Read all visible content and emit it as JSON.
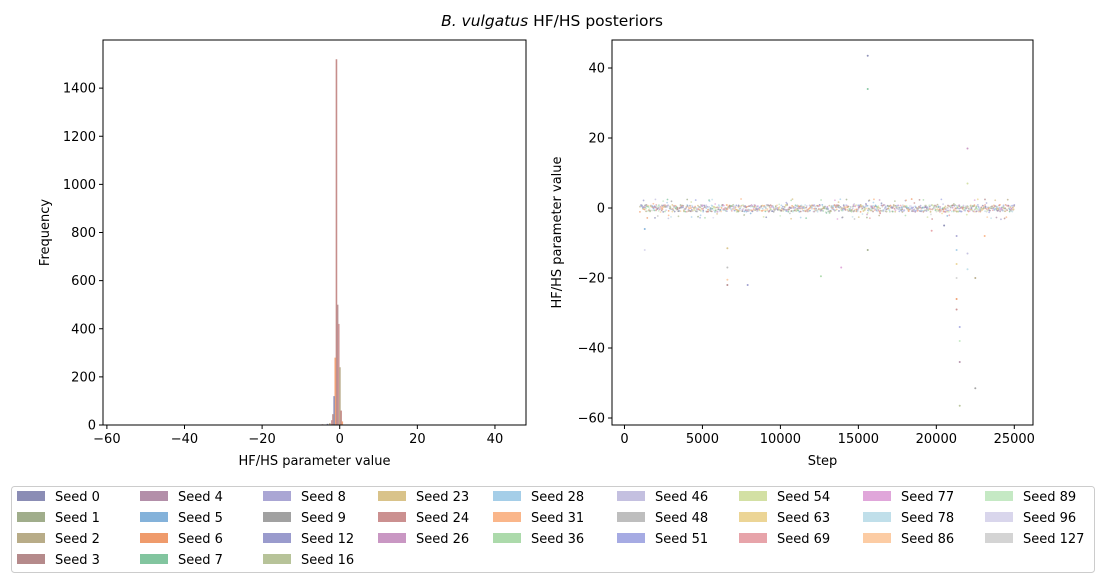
{
  "figure": {
    "title_italic": "B. vulgatus",
    "title_rest": " HF/HS posteriors"
  },
  "chart_data": [
    {
      "type": "histogram",
      "xlabel": "HF/HS parameter value",
      "ylabel": "Frequency",
      "xlim": [
        -61,
        48
      ],
      "ylim": [
        0,
        1600
      ],
      "xticks": [
        -60,
        -40,
        -20,
        0,
        20,
        40
      ],
      "yticks": [
        0,
        200,
        400,
        600,
        800,
        1000,
        1200,
        1400
      ],
      "bins": [
        {
          "x": -0.9,
          "y": 1520
        },
        {
          "x": -0.6,
          "y": 500
        },
        {
          "x": -0.3,
          "y": 420
        },
        {
          "x": -1.2,
          "y": 280
        },
        {
          "x": 0.0,
          "y": 240
        },
        {
          "x": -1.5,
          "y": 120
        },
        {
          "x": 0.3,
          "y": 60
        },
        {
          "x": -1.8,
          "y": 45
        },
        {
          "x": -2.1,
          "y": 20
        },
        {
          "x": 0.6,
          "y": 15
        },
        {
          "x": -2.6,
          "y": 8
        },
        {
          "x": -3.2,
          "y": 5
        },
        {
          "x": -4.5,
          "y": 3
        },
        {
          "x": -6.0,
          "y": 2
        },
        {
          "x": -12.0,
          "y": 2
        },
        {
          "x": -28.0,
          "y": 2
        },
        {
          "x": 1.5,
          "y": 2
        }
      ]
    },
    {
      "type": "scatter",
      "xlabel": "Step",
      "ylabel": "HF/HS parameter value",
      "xlim": [
        -800,
        26200
      ],
      "ylim": [
        -62,
        48
      ],
      "xticks": [
        0,
        5000,
        10000,
        15000,
        20000,
        25000
      ],
      "yticks": [
        -60,
        -40,
        -20,
        0,
        20,
        40
      ],
      "band": {
        "x_start": 1000,
        "x_end": 25000,
        "center": 0,
        "spread": 1
      },
      "outliers": [
        {
          "x": 15600,
          "y": 43.5
        },
        {
          "x": 15600,
          "y": 34
        },
        {
          "x": 22000,
          "y": 17
        },
        {
          "x": 22000,
          "y": 7
        },
        {
          "x": 1300,
          "y": -12
        },
        {
          "x": 1300,
          "y": -6
        },
        {
          "x": 6600,
          "y": -11.5
        },
        {
          "x": 6600,
          "y": -17
        },
        {
          "x": 6600,
          "y": -20.5
        },
        {
          "x": 6600,
          "y": -22
        },
        {
          "x": 7900,
          "y": -22
        },
        {
          "x": 12600,
          "y": -19.5
        },
        {
          "x": 13900,
          "y": -17
        },
        {
          "x": 15600,
          "y": -12
        },
        {
          "x": 21300,
          "y": -8
        },
        {
          "x": 21300,
          "y": -12
        },
        {
          "x": 21300,
          "y": -16
        },
        {
          "x": 21300,
          "y": -20
        },
        {
          "x": 21300,
          "y": -26
        },
        {
          "x": 21300,
          "y": -29
        },
        {
          "x": 21500,
          "y": -34
        },
        {
          "x": 21500,
          "y": -38
        },
        {
          "x": 21500,
          "y": -44
        },
        {
          "x": 21500,
          "y": -56.5
        },
        {
          "x": 22000,
          "y": -13
        },
        {
          "x": 22000,
          "y": -17.5
        },
        {
          "x": 22500,
          "y": -20
        },
        {
          "x": 22500,
          "y": -51.5
        },
        {
          "x": 23100,
          "y": -8
        },
        {
          "x": 19700,
          "y": -6.5
        },
        {
          "x": 20500,
          "y": -5
        }
      ]
    }
  ],
  "legend": {
    "ncols": 9,
    "items": [
      {
        "label": "Seed 0",
        "color": "#8b8db5"
      },
      {
        "label": "Seed 1",
        "color": "#a0ad8b"
      },
      {
        "label": "Seed 2",
        "color": "#b8ac88"
      },
      {
        "label": "Seed 3",
        "color": "#b58a8b"
      },
      {
        "label": "Seed 4",
        "color": "#b38fa9"
      },
      {
        "label": "Seed 5",
        "color": "#84b2da"
      },
      {
        "label": "Seed 6",
        "color": "#ef9b6c"
      },
      {
        "label": "Seed 7",
        "color": "#82c59f"
      },
      {
        "label": "Seed 8",
        "color": "#aaa6d4"
      },
      {
        "label": "Seed 9",
        "color": "#a1a1a1"
      },
      {
        "label": "Seed 12",
        "color": "#9a9bcd"
      },
      {
        "label": "Seed 16",
        "color": "#b7c399"
      },
      {
        "label": "Seed 23",
        "color": "#d9c38a"
      },
      {
        "label": "Seed 24",
        "color": "#cb9090"
      },
      {
        "label": "Seed 26",
        "color": "#c997c3"
      },
      {
        "label": "Seed 28",
        "color": "#a5cee8"
      },
      {
        "label": "Seed 31",
        "color": "#fab68a"
      },
      {
        "label": "Seed 36",
        "color": "#acdaab"
      },
      {
        "label": "Seed 46",
        "color": "#c4c0e0"
      },
      {
        "label": "Seed 48",
        "color": "#bebebe"
      },
      {
        "label": "Seed 51",
        "color": "#a6abe3"
      },
      {
        "label": "Seed 54",
        "color": "#d3e0a4"
      },
      {
        "label": "Seed 63",
        "color": "#ecd596"
      },
      {
        "label": "Seed 69",
        "color": "#e7a4aa"
      },
      {
        "label": "Seed 77",
        "color": "#e0a6da"
      },
      {
        "label": "Seed 78",
        "color": "#c0dfea"
      },
      {
        "label": "Seed 86",
        "color": "#fccca4"
      },
      {
        "label": "Seed 89",
        "color": "#c5e9c4"
      },
      {
        "label": "Seed 96",
        "color": "#d9d6ec"
      },
      {
        "label": "Seed 127",
        "color": "#d4d4d4"
      }
    ]
  }
}
